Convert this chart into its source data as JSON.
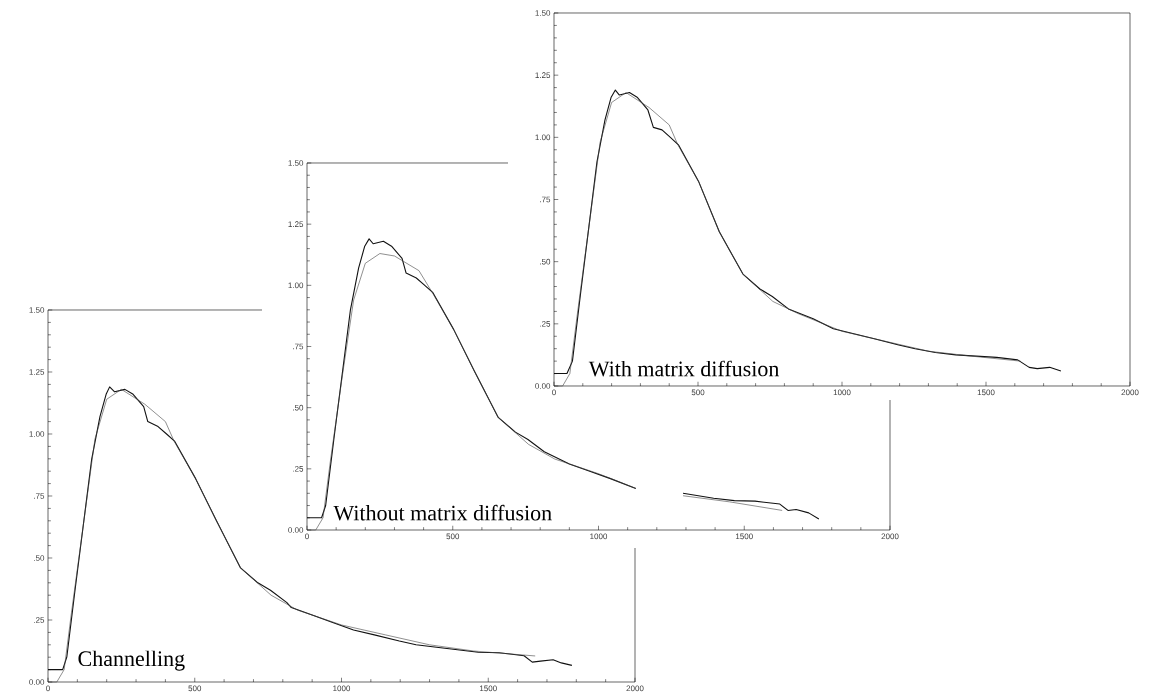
{
  "chart_data": [
    {
      "type": "line",
      "xlim": [
        0,
        2000
      ],
      "ylim": [
        0,
        1.5
      ],
      "xticks": [
        0,
        500,
        1000,
        1500,
        2000
      ],
      "yticks": [
        {
          "value": 0,
          "label": "0.00"
        },
        {
          "value": 0.25,
          "label": ".25"
        },
        {
          "value": 0.5,
          "label": ".50"
        },
        {
          "value": 0.75,
          "label": ".75"
        },
        {
          "value": 1.0,
          "label": "1.00"
        },
        {
          "value": 1.25,
          "label": "1.25"
        },
        {
          "value": 1.5,
          "label": "1.50"
        }
      ],
      "annotations": [
        "Channelling"
      ],
      "series": [
        {
          "color": "#111111",
          "x": [
            0,
            50,
            64,
            92,
            120,
            149,
            177,
            198,
            210,
            227,
            262,
            290,
            326,
            340,
            375,
            404,
            432,
            503,
            574,
            656,
            715,
            758,
            814,
            829,
            900,
            970,
            1041,
            1112,
            1197,
            1254,
            1324,
            1395,
            1466,
            1537,
            1622,
            1650,
            1678,
            1721,
            1749,
            1785
          ],
          "values": [
            0.05,
            0.05,
            0.1,
            0.37,
            0.63,
            0.9,
            1.07,
            1.16,
            1.19,
            1.17,
            1.18,
            1.16,
            1.11,
            1.05,
            1.03,
            1.0,
            0.97,
            0.82,
            0.65,
            0.46,
            0.4,
            0.37,
            0.32,
            0.3,
            0.27,
            0.24,
            0.21,
            0.19,
            0.165,
            0.15,
            0.14,
            0.13,
            0.12,
            0.118,
            0.106,
            0.08,
            0.084,
            0.09,
            0.077,
            0.067
          ]
        },
        {
          "color": "#444444",
          "x": [
            0,
            30,
            55,
            80,
            120,
            160,
            200,
            250,
            330,
            400,
            430,
            503,
            574,
            656,
            760,
            850,
            1000,
            1150,
            1300,
            1450,
            1660
          ],
          "values": [
            0,
            0,
            0.05,
            0.28,
            0.63,
            0.98,
            1.14,
            1.18,
            1.12,
            1.05,
            0.97,
            0.82,
            0.65,
            0.46,
            0.35,
            0.29,
            0.23,
            0.19,
            0.15,
            0.125,
            0.105
          ]
        }
      ]
    },
    {
      "type": "line",
      "xlim": [
        0,
        2000
      ],
      "ylim": [
        0,
        1.5
      ],
      "xticks": [
        0,
        500,
        1000,
        1500,
        2000
      ],
      "yticks": [
        {
          "value": 0,
          "label": "0.00"
        },
        {
          "value": 0.25,
          "label": ".25"
        },
        {
          "value": 0.5,
          "label": ".50"
        },
        {
          "value": 0.75,
          "label": ".75"
        },
        {
          "value": 1.0,
          "label": "1.00"
        },
        {
          "value": 1.25,
          "label": "1.25"
        },
        {
          "value": 1.5,
          "label": "1.50"
        }
      ],
      "annotations": [
        "Without matrix diffusion"
      ],
      "series": [
        {
          "color": "#111111",
          "x": [
            0,
            50,
            64,
            92,
            120,
            149,
            177,
            198,
            213,
            227,
            262,
            290,
            326,
            340,
            375,
            404,
            432,
            503,
            574,
            656,
            715,
            758,
            814,
            900,
            970,
            1041,
            1128,
            1200,
            1290,
            1395,
            1466,
            1537,
            1622,
            1650,
            1678,
            1721,
            1756
          ],
          "values": [
            0.05,
            0.05,
            0.1,
            0.37,
            0.63,
            0.9,
            1.07,
            1.16,
            1.19,
            1.17,
            1.18,
            1.16,
            1.11,
            1.05,
            1.03,
            1.0,
            0.97,
            0.82,
            0.65,
            0.46,
            0.4,
            0.37,
            0.32,
            0.27,
            0.24,
            0.21,
            0.17,
            null,
            0.15,
            0.13,
            0.12,
            0.118,
            0.106,
            0.08,
            0.084,
            0.07,
            0.045
          ]
        },
        {
          "color": "#444444",
          "x": [
            0,
            30,
            55,
            80,
            120,
            160,
            200,
            250,
            300,
            384,
            430,
            503,
            574,
            656,
            760,
            850,
            1000,
            1128,
            1200,
            1290,
            1450,
            1630
          ],
          "values": [
            0,
            0,
            0.05,
            0.28,
            0.62,
            0.94,
            1.09,
            1.13,
            1.12,
            1.06,
            0.97,
            0.82,
            0.65,
            0.46,
            0.35,
            0.29,
            0.23,
            0.17,
            null,
            0.14,
            0.115,
            0.08
          ]
        }
      ]
    },
    {
      "type": "line",
      "xlim": [
        0,
        2000
      ],
      "ylim": [
        0,
        1.5
      ],
      "xticks": [
        0,
        500,
        1000,
        1500,
        2000
      ],
      "yticks": [
        {
          "value": 0,
          "label": "0.00"
        },
        {
          "value": 0.25,
          "label": ".25"
        },
        {
          "value": 0.5,
          "label": ".50"
        },
        {
          "value": 0.75,
          "label": ".75"
        },
        {
          "value": 1.0,
          "label": "1.00"
        },
        {
          "value": 1.25,
          "label": "1.25"
        },
        {
          "value": 1.5,
          "label": "1.50"
        }
      ],
      "annotations": [
        "With matrix diffusion"
      ],
      "series": [
        {
          "color": "#111111",
          "x": [
            0,
            45,
            64,
            92,
            120,
            149,
            177,
            198,
            213,
            227,
            262,
            290,
            326,
            345,
            375,
            404,
            432,
            503,
            574,
            656,
            715,
            758,
            814,
            900,
            970,
            1041,
            1112,
            1197,
            1254,
            1324,
            1395,
            1466,
            1537,
            1610,
            1650,
            1678,
            1721,
            1760
          ],
          "values": [
            0.05,
            0.05,
            0.1,
            0.37,
            0.63,
            0.9,
            1.07,
            1.16,
            1.19,
            1.17,
            1.18,
            1.16,
            1.11,
            1.04,
            1.03,
            1.0,
            0.97,
            0.82,
            0.62,
            0.45,
            0.39,
            0.36,
            0.31,
            0.27,
            0.23,
            0.21,
            0.19,
            0.165,
            0.15,
            0.135,
            0.125,
            0.12,
            0.115,
            0.105,
            0.075,
            0.07,
            0.075,
            0.06
          ]
        },
        {
          "color": "#444444",
          "x": [
            0,
            30,
            55,
            80,
            120,
            160,
            200,
            250,
            330,
            400,
            430,
            503,
            574,
            656,
            760,
            850,
            1000,
            1150,
            1300,
            1450,
            1620
          ],
          "values": [
            0,
            0,
            0.05,
            0.28,
            0.63,
            0.98,
            1.14,
            1.18,
            1.12,
            1.05,
            0.97,
            0.82,
            0.62,
            0.45,
            0.34,
            0.29,
            0.22,
            0.18,
            0.14,
            0.12,
            0.1
          ]
        }
      ]
    }
  ]
}
